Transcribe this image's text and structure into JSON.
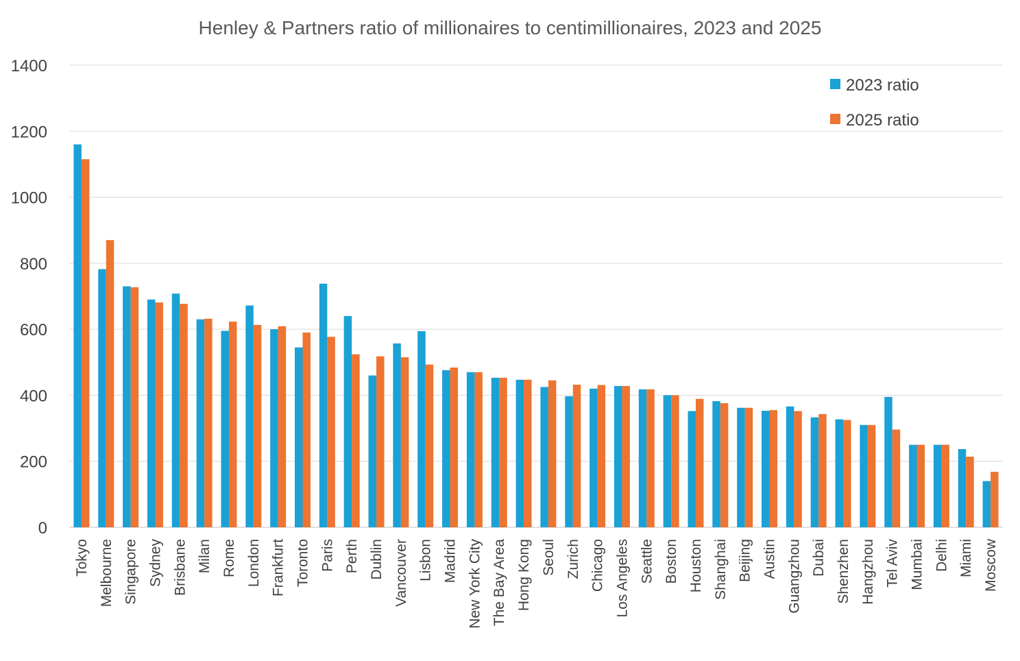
{
  "chart_data": {
    "type": "bar",
    "title": "Henley & Partners ratio of millionaires to centimillionaires, 2023 and 2025",
    "xlabel": "",
    "ylabel": "",
    "ylim": [
      0,
      1400
    ],
    "yticks": [
      0,
      200,
      400,
      600,
      800,
      1000,
      1200,
      1400
    ],
    "grid": true,
    "legend_position": "top-right",
    "categories": [
      "Tokyo",
      "Melbourne",
      "Singapore",
      "Sydney",
      "Brisbane",
      "Milan",
      "Rome",
      "London",
      "Frankfurt",
      "Toronto",
      "Paris",
      "Perth",
      "Dublin",
      "Vancouver",
      "Lisbon",
      "Madrid",
      "New York City",
      "The Bay Area",
      "Hong Kong",
      "Seoul",
      "Zurich",
      "Chicago",
      "Los Angeles",
      "Seattle",
      "Boston",
      "Houston",
      "Shanghai",
      "Beijing",
      "Austin",
      "Guangzhou",
      "Dubai",
      "Shenzhen",
      "Hangzhou",
      "Tel Aviv",
      "Mumbai",
      "Delhi",
      "Miami",
      "Moscow"
    ],
    "series": [
      {
        "name": "2023 ratio",
        "color": "#1aa1d6",
        "values": [
          1160,
          782,
          730,
          690,
          708,
          630,
          595,
          672,
          600,
          545,
          738,
          640,
          460,
          557,
          594,
          476,
          470,
          453,
          447,
          425,
          397,
          420,
          428,
          418,
          400,
          352,
          382,
          362,
          353,
          366,
          333,
          327,
          310,
          395,
          250,
          250,
          237,
          140
        ]
      },
      {
        "name": "2025 ratio",
        "color": "#ee7431",
        "values": [
          1115,
          870,
          727,
          681,
          677,
          632,
          623,
          613,
          609,
          590,
          577,
          524,
          518,
          515,
          493,
          484,
          470,
          453,
          447,
          445,
          432,
          431,
          428,
          418,
          400,
          389,
          376,
          362,
          355,
          352,
          343,
          325,
          310,
          296,
          250,
          250,
          214,
          168
        ]
      }
    ]
  }
}
